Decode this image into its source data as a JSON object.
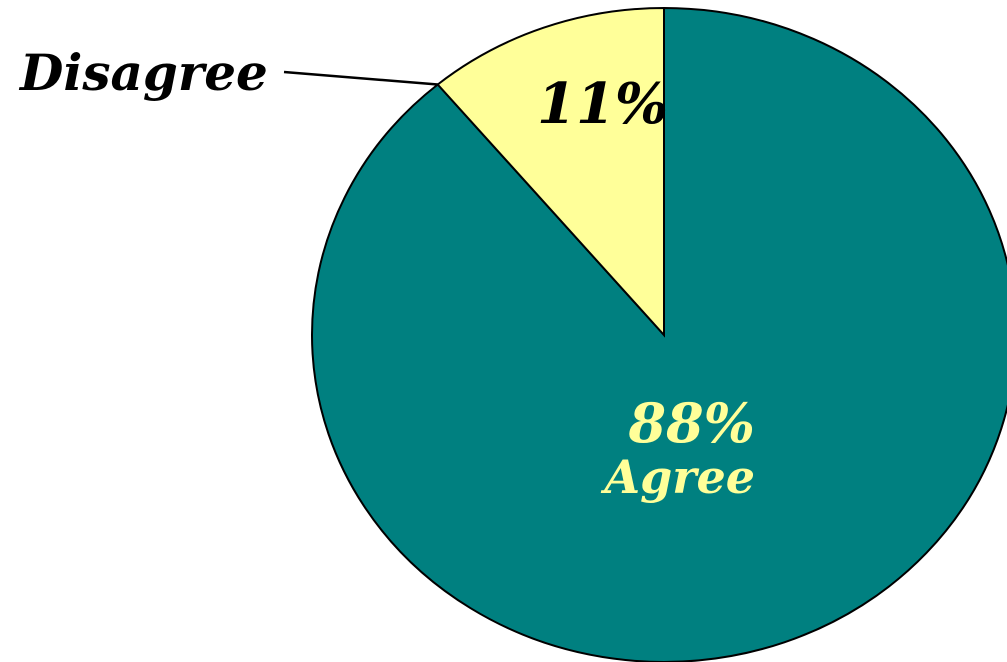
{
  "chart_data": {
    "type": "pie",
    "slices": [
      {
        "label": "Agree",
        "value_text": "88%",
        "value": 88,
        "color": "#008080",
        "label_color": "#FFFF99"
      },
      {
        "label": "Disagree",
        "value_text": "11%",
        "value": 11,
        "color": "#FFFF99",
        "label_color": "#000000"
      }
    ],
    "start": "12 o'clock",
    "direction": "clockwise",
    "outline_color": "#000000",
    "legend": "none"
  }
}
